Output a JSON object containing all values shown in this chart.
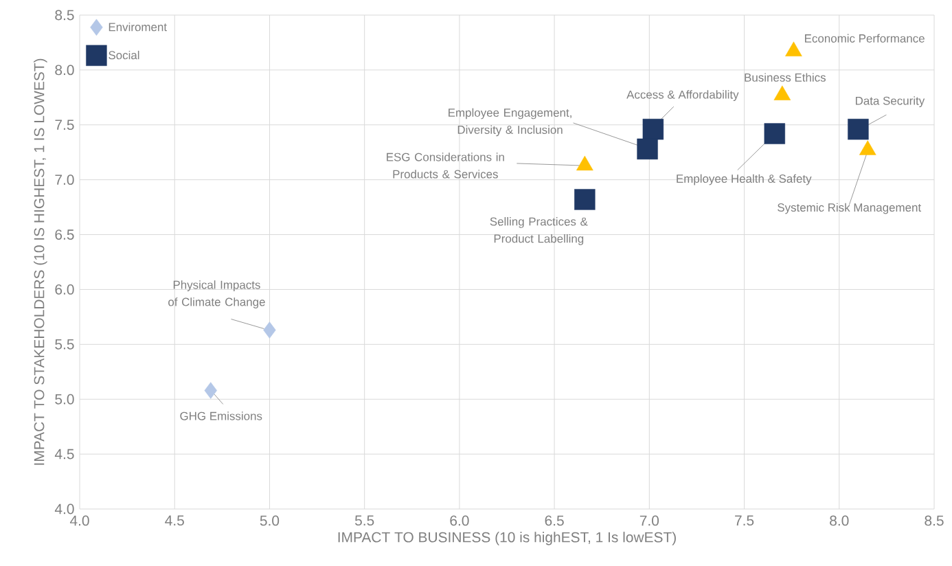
{
  "chart_data": {
    "type": "scatter",
    "xlabel": "IMPACT TO BUSINESS (10 is highEST, 1 Is lowEST)",
    "ylabel": "IMPACT TO STAKEHOLDERS  (10 IS HIGHEST, 1 IS LOWEST)",
    "xlim": [
      4.0,
      8.5
    ],
    "ylim": [
      4.0,
      8.5
    ],
    "xticks": [
      {
        "value": 4.0,
        "label": "4.0"
      },
      {
        "value": 4.5,
        "label": "4.5"
      },
      {
        "value": 5.0,
        "label": "5.0"
      },
      {
        "value": 5.5,
        "label": "5.5"
      },
      {
        "value": 6.0,
        "label": "6.0"
      },
      {
        "value": 6.5,
        "label": "6.5"
      },
      {
        "value": 7.0,
        "label": "7.0"
      },
      {
        "value": 7.5,
        "label": "7.5"
      },
      {
        "value": 8.0,
        "label": "8.0"
      },
      {
        "value": 8.5,
        "label": "8.5"
      }
    ],
    "yticks": [
      {
        "value": 4.0,
        "label": "4.0"
      },
      {
        "value": 4.5,
        "label": "4.5"
      },
      {
        "value": 5.0,
        "label": "5.0"
      },
      {
        "value": 5.5,
        "label": "5.5"
      },
      {
        "value": 6.0,
        "label": "6.0"
      },
      {
        "value": 6.5,
        "label": "6.5"
      },
      {
        "value": 7.0,
        "label": "7.0"
      },
      {
        "value": 7.5,
        "label": "7.5"
      },
      {
        "value": 8.0,
        "label": "8.0"
      },
      {
        "value": 8.5,
        "label": "8.5"
      }
    ],
    "grid": true,
    "legend": "top left",
    "series": [
      {
        "name": "Enviroment",
        "color": "#b4c7e7",
        "marker": "diamond",
        "x": [
          4.69,
          5.0
        ],
        "values": [
          5.08,
          5.63
        ]
      },
      {
        "name": "Social",
        "color": "#1f3864",
        "marker": "square",
        "x": [
          7.02,
          6.99,
          6.66,
          7.66,
          8.1
        ],
        "values": [
          7.46,
          7.28,
          6.82,
          7.42,
          7.46
        ]
      },
      {
        "color": "#ffc000",
        "marker": "triangle",
        "x": [
          7.76,
          7.7,
          6.66,
          8.15
        ],
        "values": [
          8.17,
          7.77,
          7.13,
          7.27
        ]
      }
    ],
    "annotations": [
      {
        "text": "Economic Performance",
        "x": 7.76,
        "y": 8.17
      },
      {
        "text": "Business Ethics",
        "x": 7.7,
        "y": 7.77
      },
      {
        "text": "Access & Affordability",
        "x": 7.02,
        "y": 7.46
      },
      {
        "text": "Employee Engagement, Diversity & Inclusion",
        "x": 6.99,
        "y": 7.28
      },
      {
        "text": "ESG Considerations in Products & Services",
        "x": 6.66,
        "y": 7.13
      },
      {
        "text": "Selling Practices & Product Labelling",
        "x": 6.66,
        "y": 6.82
      },
      {
        "text": "Employee Health & Safety",
        "x": 7.66,
        "y": 7.42
      },
      {
        "text": "Data Security",
        "x": 8.1,
        "y": 7.46
      },
      {
        "text": "Systemic Risk Management",
        "x": 8.15,
        "y": 7.27
      },
      {
        "text": "Physical Impacts of Climate Change",
        "x": 5.0,
        "y": 5.63
      },
      {
        "text": "GHG Emissions",
        "x": 4.69,
        "y": 5.08
      }
    ]
  }
}
